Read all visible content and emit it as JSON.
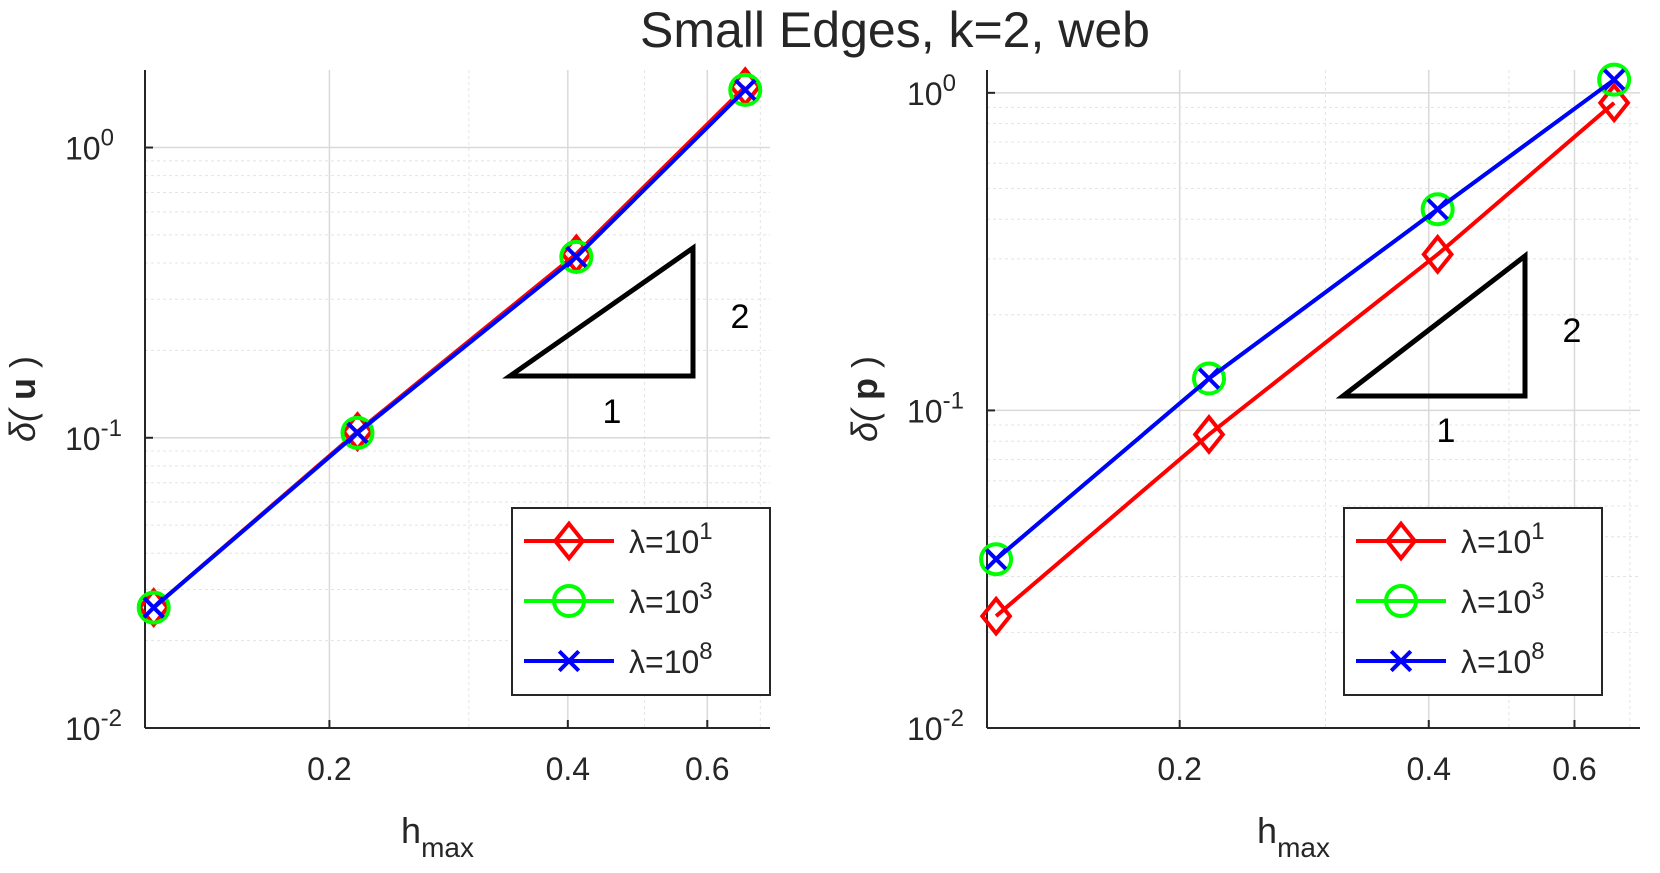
{
  "figure": {
    "title": "Small Edges, k=2, web"
  },
  "chart_data": [
    {
      "type": "line",
      "xscale": "log",
      "yscale": "log",
      "xlim": [
        0.117,
        0.72
      ],
      "ylim": [
        0.01,
        1.85
      ],
      "xticks": [
        0.2,
        0.4,
        0.6
      ],
      "xtick_labels": [
        "0.2",
        "0.4",
        "0.6"
      ],
      "yticks": [
        0.01,
        0.1,
        1
      ],
      "ytick_labels": [
        {
          "base": "10",
          "exp": "-2"
        },
        {
          "base": "10",
          "exp": "-1"
        },
        {
          "base": "10",
          "exp": "0"
        }
      ],
      "xlabel": {
        "main": "h",
        "sub": "max"
      },
      "ylabel": {
        "prefix": "δ( ",
        "bold": "u",
        "suffix": " )"
      },
      "grid": true,
      "legend_position": "bottom-right",
      "slope_triangle": {
        "run_label": "1",
        "rise_label": "2"
      },
      "series": [
        {
          "name": {
            "base": "λ=10",
            "exp": "1"
          },
          "color": "#ff0000",
          "marker": "diamond",
          "x": [
            0.12,
            0.217,
            0.41,
            0.67
          ],
          "y": [
            0.026,
            0.105,
            0.43,
            1.62
          ]
        },
        {
          "name": {
            "base": "λ=10",
            "exp": "3"
          },
          "color": "#00ff00",
          "marker": "circle",
          "x": [
            0.12,
            0.217,
            0.41,
            0.67
          ],
          "y": [
            0.026,
            0.104,
            0.42,
            1.58
          ]
        },
        {
          "name": {
            "base": "λ=10",
            "exp": "8"
          },
          "color": "#0000ff",
          "marker": "x",
          "x": [
            0.12,
            0.217,
            0.41,
            0.67
          ],
          "y": [
            0.026,
            0.104,
            0.42,
            1.58
          ]
        }
      ]
    },
    {
      "type": "line",
      "xscale": "log",
      "yscale": "log",
      "xlim": [
        0.117,
        0.72
      ],
      "ylim": [
        0.01,
        1.18
      ],
      "xticks": [
        0.2,
        0.4,
        0.6
      ],
      "xtick_labels": [
        "0.2",
        "0.4",
        "0.6"
      ],
      "yticks": [
        0.01,
        0.1,
        1
      ],
      "ytick_labels": [
        {
          "base": "10",
          "exp": "-2"
        },
        {
          "base": "10",
          "exp": "-1"
        },
        {
          "base": "10",
          "exp": "0"
        }
      ],
      "xlabel": {
        "main": "h",
        "sub": "max"
      },
      "ylabel": {
        "prefix": "δ( ",
        "bold": "p",
        "suffix": " )"
      },
      "grid": true,
      "legend_position": "bottom-right",
      "slope_triangle": {
        "run_label": "1",
        "rise_label": "2"
      },
      "series": [
        {
          "name": {
            "base": "λ=10",
            "exp": "1"
          },
          "color": "#ff0000",
          "marker": "diamond",
          "x": [
            0.12,
            0.217,
            0.41,
            0.67
          ],
          "y": [
            0.0225,
            0.084,
            0.31,
            0.93
          ]
        },
        {
          "name": {
            "base": "λ=10",
            "exp": "3"
          },
          "color": "#00ff00",
          "marker": "circle",
          "x": [
            0.12,
            0.217,
            0.41,
            0.67
          ],
          "y": [
            0.034,
            0.126,
            0.43,
            1.1
          ]
        },
        {
          "name": {
            "base": "λ=10",
            "exp": "8"
          },
          "color": "#0000ff",
          "marker": "x",
          "x": [
            0.12,
            0.217,
            0.41,
            0.67
          ],
          "y": [
            0.034,
            0.126,
            0.43,
            1.1
          ]
        }
      ]
    }
  ]
}
